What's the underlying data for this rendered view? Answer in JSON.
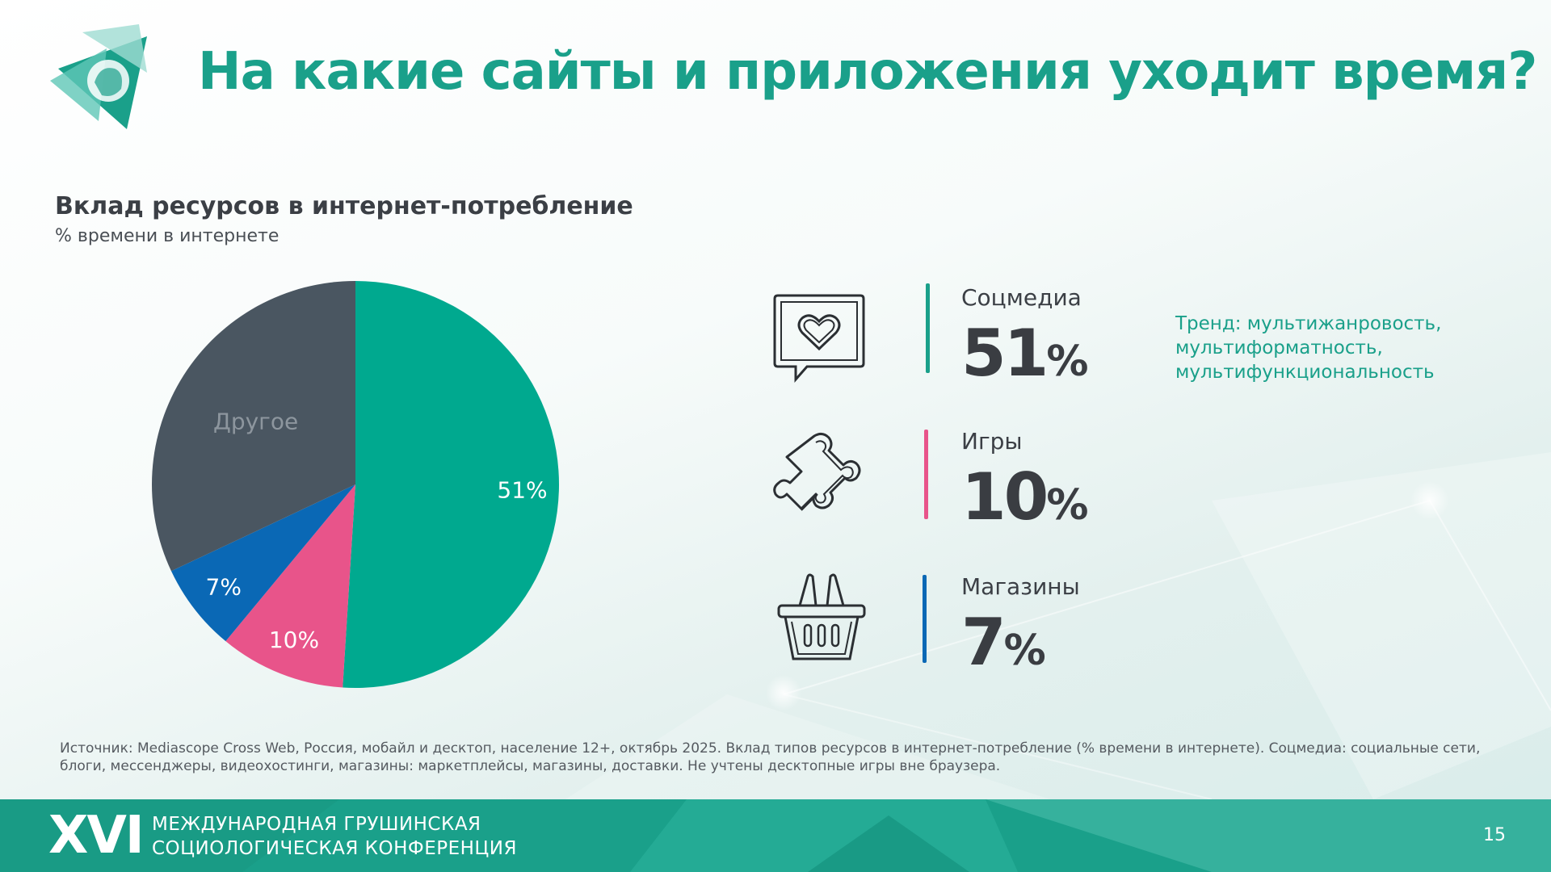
{
  "title": "На какие сайты и приложения уходит время?",
  "chart_data": {
    "type": "pie",
    "title": "Вклад ресурсов в интернет-потребление",
    "subtitle": "% времени в интернете",
    "slices": [
      {
        "name": "",
        "value": 51,
        "label": "51%",
        "color": "#00a98f"
      },
      {
        "name": "",
        "value": 10,
        "label": "10%",
        "color": "#e8548a"
      },
      {
        "name": "",
        "value": 7,
        "label": "7%",
        "color": "#0a68b5"
      },
      {
        "name": "Другое",
        "value": 32,
        "label": "Другое",
        "color": "#4a5661"
      }
    ]
  },
  "stats": [
    {
      "label": "Соцмедиа",
      "number": "51",
      "unit": "%",
      "icon": "chat-heart-icon",
      "color": "#1aa08a"
    },
    {
      "label": "Игры",
      "number": "10",
      "unit": "%",
      "icon": "puzzle-icon",
      "color": "#e8548a"
    },
    {
      "label": "Магазины",
      "number": "7",
      "unit": "%",
      "icon": "shopping-basket-icon",
      "color": "#0a68b5"
    }
  ],
  "trend": "Тренд: мультижанровость, мультиформатность, мультифункциональность",
  "source": "Источник: Mediascope Cross Web, Россия, мобайл и десктоп, население 12+, октябрь 2025. Вклад типов ресурсов в интернет-потребление (% времени в интернете). Соцмедиа: социальные сети, блоги, мессенджеры, видеохостинги, магазины: маркетплейсы, магазины, доставки. Не учтены десктопные игры вне браузера.",
  "footer": {
    "roman": "XVI",
    "line1": "МЕЖДУНАРОДНАЯ ГРУШИНСКАЯ",
    "line2": "СОЦИОЛОГИЧЕСКАЯ КОНФЕРЕНЦИЯ",
    "page": "15"
  }
}
